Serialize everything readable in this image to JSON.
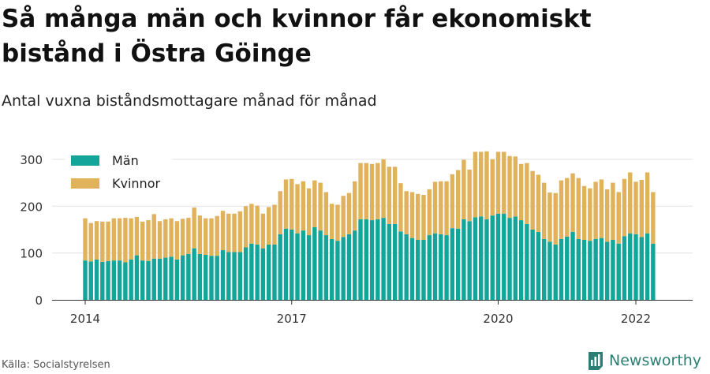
{
  "title": "Så många män och kvinnor får ekonomiskt bistånd i Östra Göinge",
  "subtitle": "Antal vuxna biståndsmottagare månad för månad",
  "source": "Källa: Socialstyrelsen",
  "brand": "Newsworthy",
  "colors": {
    "man": "#14a59a",
    "kvinnor": "#e0b25c",
    "grid": "#e2e2e2",
    "brand": "#2a7f72"
  },
  "chart_data": {
    "type": "bar",
    "stacked": true,
    "x_start": "2014-01",
    "x_tick_labels": [
      "2014",
      "2017",
      "2020",
      "2022"
    ],
    "y_ticks": [
      0,
      100,
      200,
      300
    ],
    "ylim": [
      0,
      320
    ],
    "grid": true,
    "legend_position": "top-left",
    "series": [
      {
        "name": "Män",
        "values": [
          84,
          82,
          86,
          81,
          83,
          84,
          84,
          80,
          86,
          95,
          84,
          83,
          88,
          88,
          90,
          92,
          86,
          95,
          98,
          110,
          98,
          96,
          94,
          94,
          106,
          102,
          102,
          102,
          112,
          120,
          118,
          110,
          118,
          118,
          140,
          152,
          150,
          142,
          148,
          138,
          155,
          148,
          138,
          130,
          126,
          134,
          140,
          148,
          172,
          172,
          170,
          172,
          175,
          162,
          162,
          146,
          140,
          132,
          128,
          128,
          138,
          142,
          140,
          138,
          153,
          152,
          172,
          168,
          176,
          178,
          172,
          180,
          184,
          184,
          175,
          178,
          170,
          162,
          150,
          145,
          130,
          124,
          118,
          130,
          135,
          145,
          130,
          128,
          126,
          130,
          132,
          124,
          128,
          120,
          136,
          142,
          140,
          134,
          142,
          120
        ]
      },
      {
        "name": "Kvinnor",
        "values": [
          90,
          82,
          82,
          86,
          84,
          90,
          90,
          95,
          88,
          82,
          83,
          87,
          95,
          80,
          82,
          82,
          82,
          78,
          77,
          87,
          82,
          78,
          80,
          85,
          84,
          82,
          82,
          87,
          88,
          85,
          83,
          74,
          80,
          85,
          92,
          105,
          108,
          105,
          105,
          100,
          100,
          102,
          92,
          75,
          77,
          88,
          88,
          105,
          120,
          120,
          120,
          120,
          125,
          122,
          122,
          103,
          92,
          98,
          98,
          96,
          98,
          110,
          113,
          115,
          115,
          125,
          127,
          110,
          140,
          138,
          145,
          120,
          132,
          132,
          132,
          128,
          120,
          130,
          125,
          122,
          120,
          105,
          110,
          125,
          125,
          125,
          130,
          115,
          112,
          122,
          125,
          112,
          122,
          110,
          122,
          130,
          112,
          122,
          130,
          110
        ]
      }
    ]
  }
}
